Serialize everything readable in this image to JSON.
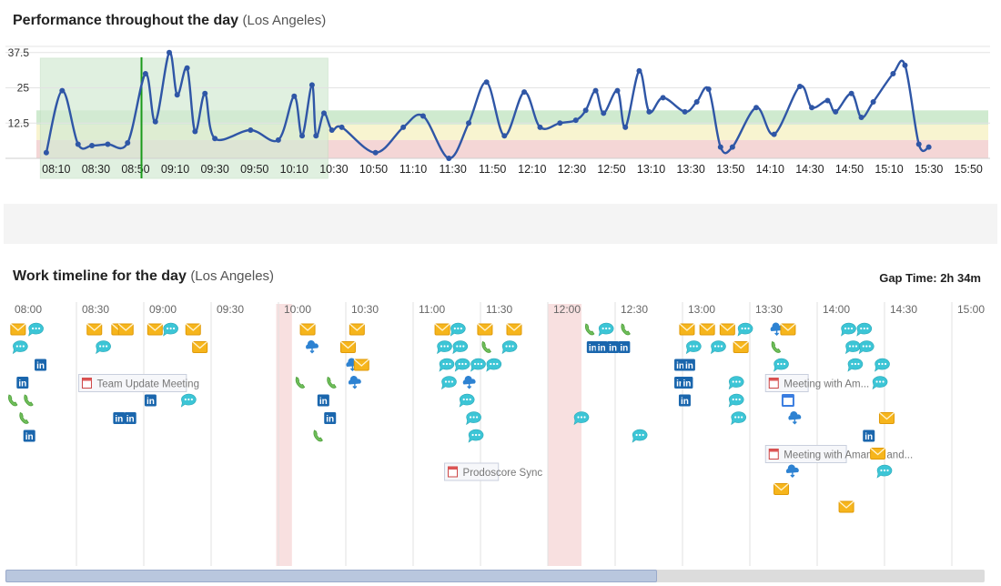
{
  "performance": {
    "title": "Performance throughout the day",
    "location": "(Los Angeles)"
  },
  "timeline": {
    "title": "Work timeline for the day",
    "location": "(Los Angeles)",
    "gap_time_label": "Gap Time:",
    "gap_time_value": "2h 34m",
    "hours": [
      "08:00",
      "08:30",
      "09:00",
      "09:30",
      "10:00",
      "10:30",
      "11:00",
      "11:30",
      "12:00",
      "12:30",
      "13:00",
      "13:30",
      "14:00",
      "14:30",
      "15:00"
    ],
    "gap_ranges": [
      [
        "09:59",
        "10:06"
      ],
      [
        "12:00",
        "12:15"
      ]
    ],
    "meetings": [
      {
        "label": "Team Update Meeting",
        "start": "08:31",
        "end": "09:19",
        "row": 4
      },
      {
        "label": "Meeting with Am...",
        "start": "13:37",
        "end": "13:56",
        "row": 4
      },
      {
        "label": "Prodoscore Sync",
        "start": "11:14",
        "end": "11:38",
        "row": 9
      },
      {
        "label": "Meeting with Amanda and...",
        "start": "13:37",
        "end": "14:13",
        "row": 8
      }
    ],
    "activities": [
      {
        "t": "08:04",
        "row": 1,
        "icon": "email"
      },
      {
        "t": "08:05",
        "row": 2,
        "icon": "chat"
      },
      {
        "t": "08:12",
        "row": 1,
        "icon": "chat"
      },
      {
        "t": "08:14",
        "row": 3,
        "icon": "linkedin"
      },
      {
        "t": "08:06",
        "row": 4,
        "icon": "linkedin"
      },
      {
        "t": "08:02",
        "row": 5,
        "icon": "phone"
      },
      {
        "t": "08:09",
        "row": 5,
        "icon": "phone"
      },
      {
        "t": "08:07",
        "row": 6,
        "icon": "phone"
      },
      {
        "t": "08:09",
        "row": 7,
        "icon": "linkedin"
      },
      {
        "t": "08:38",
        "row": 1,
        "icon": "email"
      },
      {
        "t": "08:49",
        "row": 1,
        "icon": "email"
      },
      {
        "t": "08:42",
        "row": 2,
        "icon": "chat"
      },
      {
        "t": "08:52",
        "row": 1,
        "icon": "email"
      },
      {
        "t": "09:05",
        "row": 1,
        "icon": "email"
      },
      {
        "t": "09:12",
        "row": 1,
        "icon": "chat"
      },
      {
        "t": "09:22",
        "row": 1,
        "icon": "email"
      },
      {
        "t": "09:25",
        "row": 2,
        "icon": "email"
      },
      {
        "t": "09:03",
        "row": 5,
        "icon": "linkedin"
      },
      {
        "t": "08:49",
        "row": 6,
        "icon": "linkedin"
      },
      {
        "t": "08:54",
        "row": 6,
        "icon": "linkedin"
      },
      {
        "t": "09:20",
        "row": 5,
        "icon": "chat"
      },
      {
        "t": "10:13",
        "row": 1,
        "icon": "email"
      },
      {
        "t": "10:15",
        "row": 2,
        "icon": "cloud"
      },
      {
        "t": "10:10",
        "row": 4,
        "icon": "phone"
      },
      {
        "t": "10:35",
        "row": 1,
        "icon": "email"
      },
      {
        "t": "10:31",
        "row": 2,
        "icon": "email"
      },
      {
        "t": "10:33",
        "row": 3,
        "icon": "cloud"
      },
      {
        "t": "10:37",
        "row": 3,
        "icon": "email"
      },
      {
        "t": "10:34",
        "row": 4,
        "icon": "cloud"
      },
      {
        "t": "10:24",
        "row": 4,
        "icon": "phone"
      },
      {
        "t": "10:20",
        "row": 5,
        "icon": "linkedin"
      },
      {
        "t": "10:23",
        "row": 6,
        "icon": "linkedin"
      },
      {
        "t": "10:18",
        "row": 7,
        "icon": "phone"
      },
      {
        "t": "11:13",
        "row": 1,
        "icon": "email"
      },
      {
        "t": "11:20",
        "row": 1,
        "icon": "chat"
      },
      {
        "t": "11:32",
        "row": 1,
        "icon": "email"
      },
      {
        "t": "11:45",
        "row": 1,
        "icon": "email"
      },
      {
        "t": "11:14",
        "row": 2,
        "icon": "chat"
      },
      {
        "t": "11:21",
        "row": 2,
        "icon": "chat"
      },
      {
        "t": "11:33",
        "row": 2,
        "icon": "phone"
      },
      {
        "t": "11:43",
        "row": 2,
        "icon": "chat"
      },
      {
        "t": "11:15",
        "row": 3,
        "icon": "chat"
      },
      {
        "t": "11:22",
        "row": 3,
        "icon": "chat"
      },
      {
        "t": "11:29",
        "row": 3,
        "icon": "chat"
      },
      {
        "t": "11:36",
        "row": 3,
        "icon": "chat"
      },
      {
        "t": "11:16",
        "row": 4,
        "icon": "chat"
      },
      {
        "t": "11:25",
        "row": 4,
        "icon": "cloud"
      },
      {
        "t": "11:24",
        "row": 5,
        "icon": "chat"
      },
      {
        "t": "11:27",
        "row": 6,
        "icon": "chat"
      },
      {
        "t": "11:28",
        "row": 7,
        "icon": "chat"
      },
      {
        "t": "12:19",
        "row": 1,
        "icon": "phone"
      },
      {
        "t": "12:26",
        "row": 1,
        "icon": "chat"
      },
      {
        "t": "12:20",
        "row": 2,
        "icon": "linkedin"
      },
      {
        "t": "12:24",
        "row": 2,
        "icon": "linkedin"
      },
      {
        "t": "12:29",
        "row": 2,
        "icon": "linkedin"
      },
      {
        "t": "12:34",
        "row": 2,
        "icon": "linkedin"
      },
      {
        "t": "12:35",
        "row": 1,
        "icon": "phone"
      },
      {
        "t": "12:15",
        "row": 6,
        "icon": "chat"
      },
      {
        "t": "12:41",
        "row": 7,
        "icon": "chat"
      },
      {
        "t": "13:02",
        "row": 1,
        "icon": "email"
      },
      {
        "t": "13:11",
        "row": 1,
        "icon": "email"
      },
      {
        "t": "13:20",
        "row": 1,
        "icon": "email"
      },
      {
        "t": "13:28",
        "row": 1,
        "icon": "chat"
      },
      {
        "t": "13:05",
        "row": 2,
        "icon": "chat"
      },
      {
        "t": "13:16",
        "row": 2,
        "icon": "chat"
      },
      {
        "t": "13:26",
        "row": 2,
        "icon": "email"
      },
      {
        "t": "12:59",
        "row": 3,
        "icon": "linkedin"
      },
      {
        "t": "13:03",
        "row": 3,
        "icon": "linkedin"
      },
      {
        "t": "12:59",
        "row": 4,
        "icon": "linkedin"
      },
      {
        "t": "13:02",
        "row": 4,
        "icon": "linkedin"
      },
      {
        "t": "13:01",
        "row": 5,
        "icon": "linkedin"
      },
      {
        "t": "13:24",
        "row": 4,
        "icon": "chat"
      },
      {
        "t": "13:24",
        "row": 5,
        "icon": "chat"
      },
      {
        "t": "13:25",
        "row": 6,
        "icon": "chat"
      },
      {
        "t": "13:42",
        "row": 1,
        "icon": "cloud"
      },
      {
        "t": "13:47",
        "row": 1,
        "icon": "email"
      },
      {
        "t": "13:42",
        "row": 2,
        "icon": "phone"
      },
      {
        "t": "13:44",
        "row": 3,
        "icon": "chat"
      },
      {
        "t": "13:47",
        "row": 5,
        "icon": "calendar"
      },
      {
        "t": "13:50",
        "row": 6,
        "icon": "cloud"
      },
      {
        "t": "13:49",
        "row": 9,
        "icon": "cloud"
      },
      {
        "t": "13:44",
        "row": 10,
        "icon": "email"
      },
      {
        "t": "14:14",
        "row": 1,
        "icon": "chat"
      },
      {
        "t": "14:21",
        "row": 1,
        "icon": "chat"
      },
      {
        "t": "14:16",
        "row": 2,
        "icon": "chat"
      },
      {
        "t": "14:22",
        "row": 2,
        "icon": "chat"
      },
      {
        "t": "14:17",
        "row": 3,
        "icon": "chat"
      },
      {
        "t": "14:29",
        "row": 3,
        "icon": "chat"
      },
      {
        "t": "14:28",
        "row": 4,
        "icon": "chat"
      },
      {
        "t": "14:23",
        "row": 7,
        "icon": "linkedin"
      },
      {
        "t": "14:27",
        "row": 8,
        "icon": "email"
      },
      {
        "t": "14:30",
        "row": 9,
        "icon": "chat"
      },
      {
        "t": "14:31",
        "row": 6,
        "icon": "email"
      },
      {
        "t": "14:13",
        "row": 11,
        "icon": "email"
      }
    ]
  },
  "chart_data": {
    "type": "line",
    "title": "Performance throughout the day",
    "xlabel": "",
    "ylabel": "",
    "yticks": [
      12.5,
      25,
      37.5
    ],
    "ylim": [
      0,
      40
    ],
    "xlim": [
      "08:00",
      "16:00"
    ],
    "xticks": [
      "08:10",
      "08:30",
      "08:50",
      "09:10",
      "09:30",
      "09:50",
      "10:10",
      "10:30",
      "10:50",
      "11:10",
      "11:30",
      "11:50",
      "12:10",
      "12:30",
      "12:50",
      "13:10",
      "13:30",
      "13:50",
      "14:10",
      "14:30",
      "14:50",
      "15:10",
      "15:30",
      "15:50"
    ],
    "bands": [
      {
        "from": 0,
        "to": 6.5,
        "color": "#f2cfcf"
      },
      {
        "from": 6.5,
        "to": 12,
        "color": "#f7f2c8"
      },
      {
        "from": 12,
        "to": 17,
        "color": "#c7e6c7"
      }
    ],
    "highlight": {
      "from": "08:02",
      "to": "10:27",
      "color": "#d4ebd4"
    },
    "marker_time": "08:53",
    "marker_color": "#1a9a1a",
    "line_color": "#2f56a6",
    "series": [
      {
        "values": [
          [
            "08:05",
            2
          ],
          [
            "08:13",
            24
          ],
          [
            "08:21",
            5
          ],
          [
            "08:28",
            4.5
          ],
          [
            "08:36",
            5
          ],
          [
            "08:46",
            5.5
          ],
          [
            "08:55",
            30
          ],
          [
            "09:00",
            13
          ],
          [
            "09:07",
            37.5
          ],
          [
            "09:11",
            22.5
          ],
          [
            "09:16",
            32
          ],
          [
            "09:20",
            9.5
          ],
          [
            "09:25",
            23
          ],
          [
            "09:30",
            7
          ],
          [
            "09:48",
            10
          ],
          [
            "10:02",
            6.5
          ],
          [
            "10:10",
            22
          ],
          [
            "10:14",
            8
          ],
          [
            "10:19",
            26
          ],
          [
            "10:21",
            8
          ],
          [
            "10:25",
            16
          ],
          [
            "10:29",
            10
          ],
          [
            "10:34",
            11
          ],
          [
            "10:51",
            2
          ],
          [
            "11:05",
            11
          ],
          [
            "11:15",
            15
          ],
          [
            "11:28",
            0
          ],
          [
            "11:38",
            12.5
          ],
          [
            "11:47",
            27
          ],
          [
            "11:56",
            8
          ],
          [
            "12:06",
            23.5
          ],
          [
            "12:14",
            11
          ],
          [
            "12:24",
            12.5
          ],
          [
            "12:32",
            13.5
          ],
          [
            "12:37",
            17
          ],
          [
            "12:42",
            24
          ],
          [
            "12:46",
            16
          ],
          [
            "12:53",
            24
          ],
          [
            "12:57",
            11
          ],
          [
            "13:04",
            31
          ],
          [
            "13:09",
            16.5
          ],
          [
            "13:16",
            21.5
          ],
          [
            "13:27",
            16.5
          ],
          [
            "13:33",
            20
          ],
          [
            "13:39",
            24.5
          ],
          [
            "13:45",
            4
          ],
          [
            "13:51",
            4
          ],
          [
            "14:03",
            18
          ],
          [
            "14:12",
            8.5
          ],
          [
            "14:25",
            25.5
          ],
          [
            "14:31",
            18
          ],
          [
            "14:39",
            20.5
          ],
          [
            "14:43",
            16.5
          ],
          [
            "14:51",
            23
          ],
          [
            "14:56",
            14.5
          ],
          [
            "15:02",
            20
          ],
          [
            "15:12",
            30
          ],
          [
            "15:18",
            33
          ],
          [
            "15:25",
            5
          ],
          [
            "15:30",
            4
          ]
        ]
      }
    ]
  }
}
